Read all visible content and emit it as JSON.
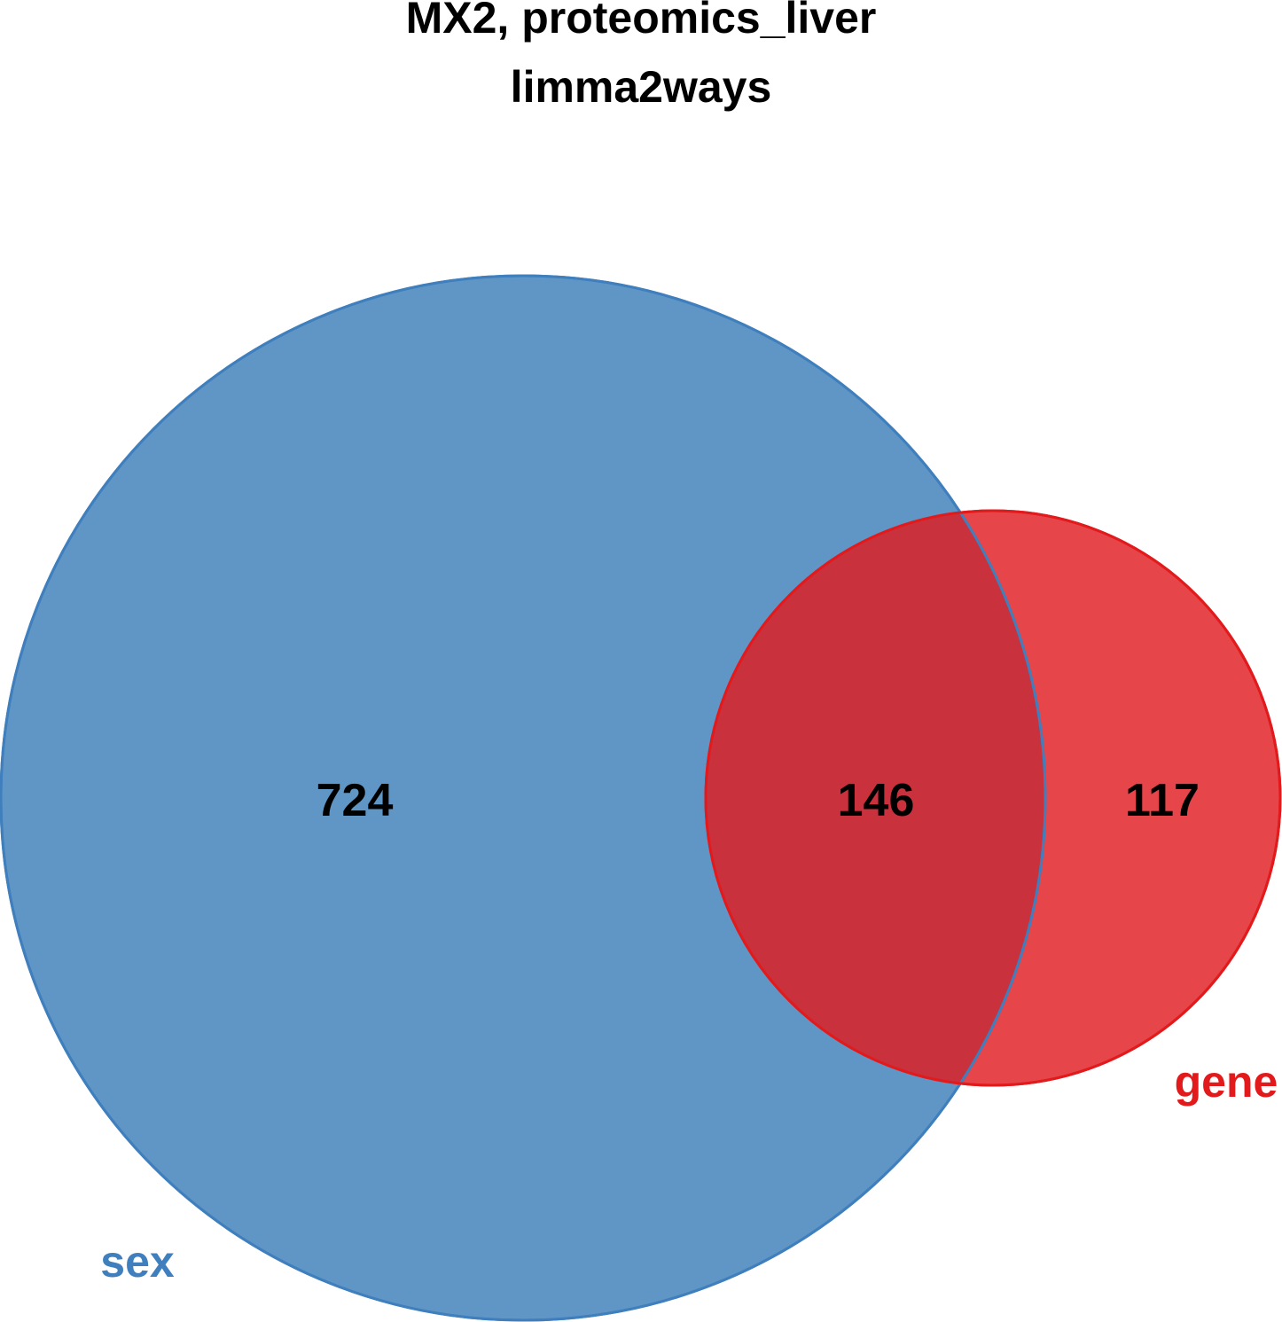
{
  "title": {
    "line1": "MX2, proteomics_liver",
    "line2": "limma2ways"
  },
  "sets": [
    {
      "name": "sex",
      "color": "#3f7fbd"
    },
    {
      "name": "gene",
      "color": "#e31a1c"
    }
  ],
  "regions": {
    "sex_only": "724",
    "both": "146",
    "gene_only": "117"
  },
  "colors": {
    "sex_fill": "#6096c5",
    "sex_stroke": "#3f7fbd",
    "gene_fill": "#e64549",
    "gene_stroke": "#e31a1c",
    "overlap_fill": "#c9313d"
  }
}
